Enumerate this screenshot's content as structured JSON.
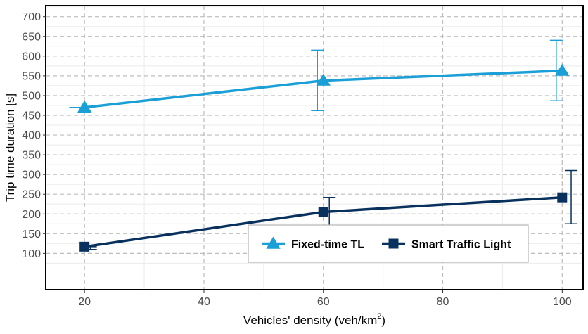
{
  "chart_data": {
    "type": "line",
    "xlabel": "Vehicles' density (veh/km",
    "xlabel_sup": "2",
    "xlabel_suffix": ")",
    "ylabel": "Trip time duration [s]",
    "x_ticks": [
      20,
      40,
      60,
      80,
      100
    ],
    "y_ticks": [
      100,
      150,
      200,
      250,
      300,
      350,
      400,
      450,
      500,
      550,
      600,
      650,
      700
    ],
    "xlim": [
      13.5,
      103.5
    ],
    "ylim": [
      8,
      728
    ],
    "grid": true,
    "legend_position": "bottom-right",
    "series": [
      {
        "name": "Fixed-time TL",
        "color": "#1a9fd6",
        "marker": "triangle",
        "points": [
          {
            "x": 20,
            "y": 470,
            "err_low": 470,
            "err_high": 470,
            "err_x": 18.5
          },
          {
            "x": 60,
            "y": 538,
            "err_low": 462,
            "err_high": 615,
            "err_x": 59
          },
          {
            "x": 100,
            "y": 563,
            "err_low": 487,
            "err_high": 640,
            "err_x": 99
          }
        ]
      },
      {
        "name": "Smart Traffic Light",
        "color": "#08315e",
        "marker": "square",
        "points": [
          {
            "x": 20,
            "y": 117,
            "err_low": 110,
            "err_high": 117,
            "err_x": 21
          },
          {
            "x": 60,
            "y": 205,
            "err_low": 168,
            "err_high": 242,
            "err_x": 61
          },
          {
            "x": 100,
            "y": 242,
            "err_low": 175,
            "err_high": 310,
            "err_x": 101.5
          }
        ]
      }
    ]
  }
}
